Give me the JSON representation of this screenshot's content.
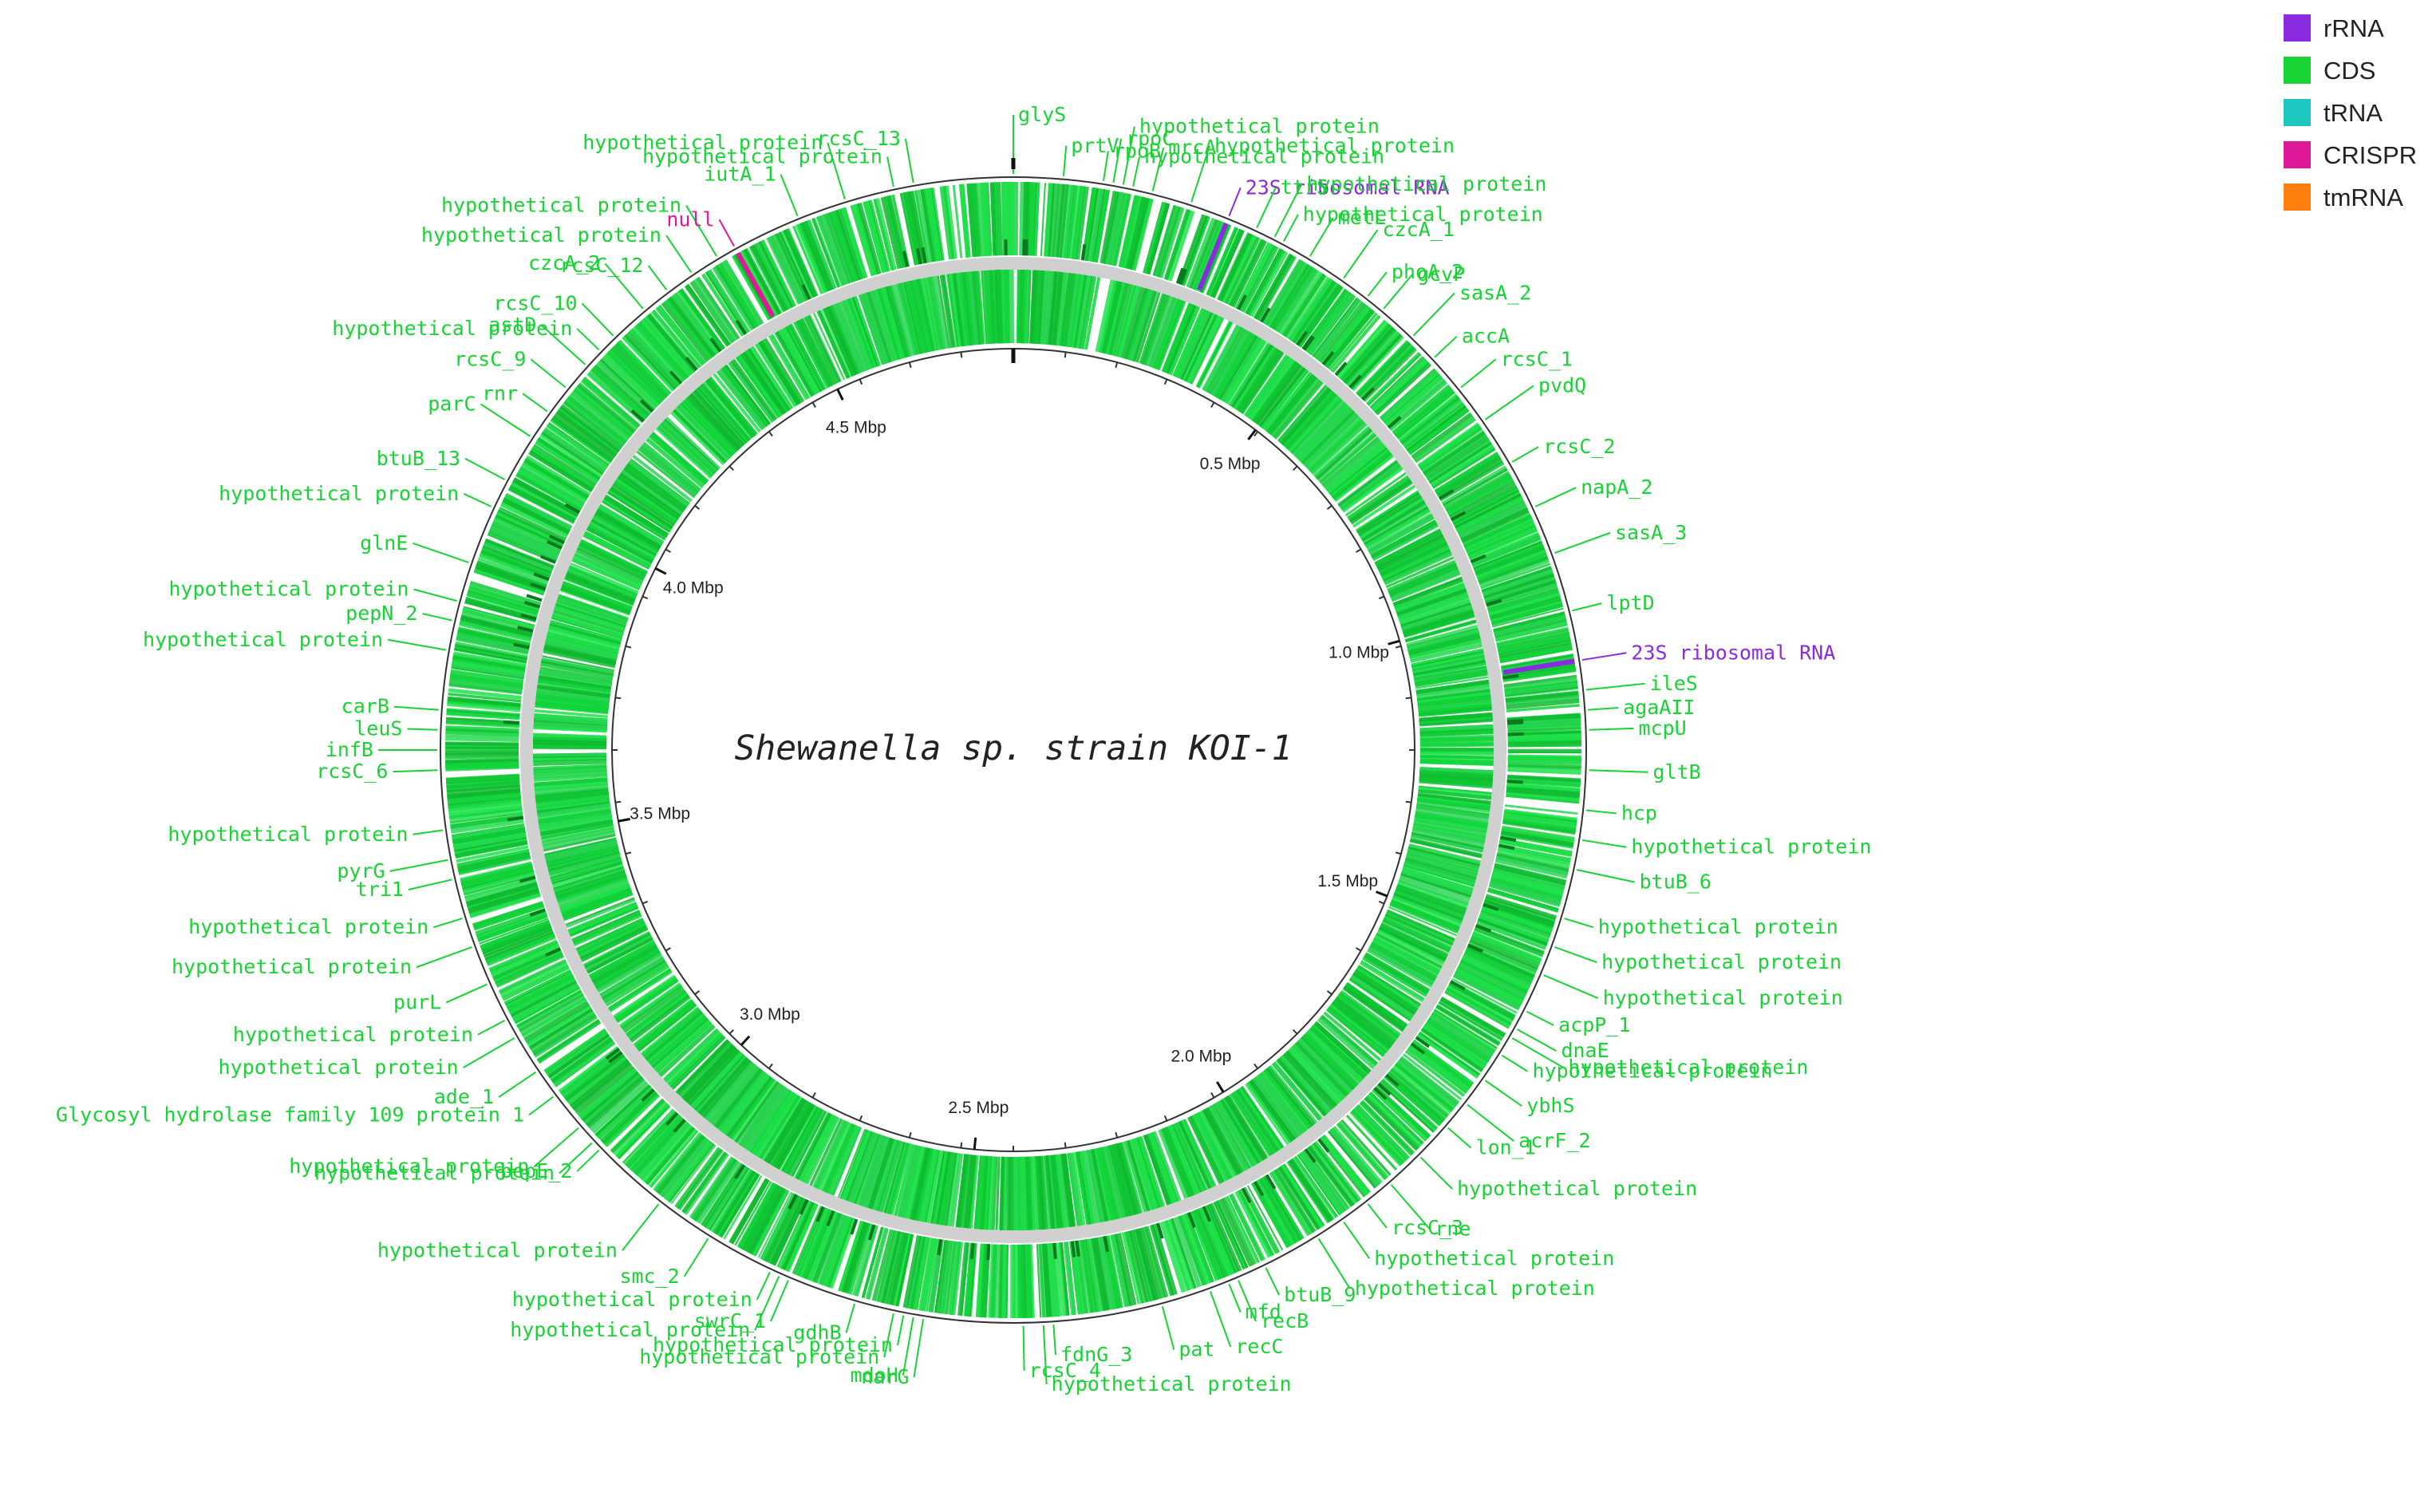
{
  "title": "Shewanella sp. strain KOI-1",
  "scale": {
    "genome_mbp": 4.85
  },
  "legend": [
    {
      "label": "rRNA",
      "color": "#8a2be2"
    },
    {
      "label": "CDS",
      "color": "#17d433"
    },
    {
      "label": "tRNA",
      "color": "#1cc8c0"
    },
    {
      "label": "CRISPR",
      "color": "#e0189a"
    },
    {
      "label": "tmRNA",
      "color": "#ff7f0e"
    }
  ],
  "ticks": [
    "0.5 Mbp",
    "1.0 Mbp",
    "1.5 Mbp",
    "2.0 Mbp",
    "2.5 Mbp",
    "3.0 Mbp",
    "3.5 Mbp",
    "4.0 Mbp",
    "4.5 Mbp"
  ],
  "features": [
    {
      "label": "rpoB",
      "type": "CDS",
      "deg": 9
    },
    {
      "label": "rpoC",
      "type": "CDS",
      "deg": 10
    },
    {
      "label": "hypothetical protein",
      "type": "CDS",
      "deg": 11
    },
    {
      "label": "hypothetical protein",
      "type": "CDS",
      "deg": 12
    },
    {
      "label": "mrcA",
      "type": "CDS",
      "deg": 14
    },
    {
      "label": "hypothetical protein",
      "type": "CDS",
      "deg": 18
    },
    {
      "label": "23S ribosomal RNA",
      "type": "rRNA",
      "deg": 22
    },
    {
      "label": "ttrS",
      "type": "CDS",
      "deg": 25
    },
    {
      "label": "hypothetical protein",
      "type": "CDS",
      "deg": 27
    },
    {
      "label": "hypothetical protein",
      "type": "CDS",
      "deg": 28
    },
    {
      "label": "metL",
      "type": "CDS",
      "deg": 31
    },
    {
      "label": "czcA_1",
      "type": "CDS",
      "deg": 35
    },
    {
      "label": "phoA_2",
      "type": "CDS",
      "deg": 38
    },
    {
      "label": "gcvP",
      "type": "CDS",
      "deg": 40
    },
    {
      "label": "sasA_2",
      "type": "CDS",
      "deg": 44
    },
    {
      "label": "accA",
      "type": "CDS",
      "deg": 47
    },
    {
      "label": "rcsC_1",
      "type": "CDS",
      "deg": 51
    },
    {
      "label": "pvdQ",
      "type": "CDS",
      "deg": 55
    },
    {
      "label": "rcsC_2",
      "type": "CDS",
      "deg": 60
    },
    {
      "label": "napA_2",
      "type": "CDS",
      "deg": 65
    },
    {
      "label": "sasA_3",
      "type": "CDS",
      "deg": 70
    },
    {
      "label": "lptD",
      "type": "CDS",
      "deg": 76
    },
    {
      "label": "23S ribosomal RNA",
      "type": "rRNA",
      "deg": 81
    },
    {
      "label": "ileS",
      "type": "CDS",
      "deg": 84
    },
    {
      "label": "agaAII",
      "type": "CDS",
      "deg": 86
    },
    {
      "label": "mcpU",
      "type": "CDS",
      "deg": 88
    },
    {
      "label": "gltB",
      "type": "CDS",
      "deg": 92
    },
    {
      "label": "hcp",
      "type": "CDS",
      "deg": 96
    },
    {
      "label": "hypothetical protein",
      "type": "CDS",
      "deg": 99
    },
    {
      "label": "btuB_6",
      "type": "CDS",
      "deg": 102
    },
    {
      "label": "hypothetical protein",
      "type": "CDS",
      "deg": 107
    },
    {
      "label": "hypothetical protein",
      "type": "CDS",
      "deg": 110
    },
    {
      "label": "hypothetical protein",
      "type": "CDS",
      "deg": 113
    },
    {
      "label": "acpP_1",
      "type": "CDS",
      "deg": 117
    },
    {
      "label": "dnaE",
      "type": "CDS",
      "deg": 119
    },
    {
      "label": "hypothetical protein",
      "type": "CDS",
      "deg": 120
    },
    {
      "label": "hypothetical protein",
      "type": "CDS",
      "deg": 122
    },
    {
      "label": "ybhS",
      "type": "CDS",
      "deg": 125
    },
    {
      "label": "acrF_2",
      "type": "CDS",
      "deg": 128
    },
    {
      "label": "lon_1",
      "type": "CDS",
      "deg": 131
    },
    {
      "label": "hypothetical protein",
      "type": "CDS",
      "deg": 135
    },
    {
      "label": "rne",
      "type": "CDS",
      "deg": 139
    },
    {
      "label": "rcsC_3",
      "type": "CDS",
      "deg": 142
    },
    {
      "label": "hypothetical protein",
      "type": "CDS",
      "deg": 145
    },
    {
      "label": "hypothetical protein",
      "type": "CDS",
      "deg": 148
    },
    {
      "label": "btuB_9",
      "type": "CDS",
      "deg": 154
    },
    {
      "label": "recB",
      "type": "CDS",
      "deg": 157
    },
    {
      "label": "recC",
      "type": "CDS",
      "deg": 160
    },
    {
      "label": "mfd",
      "type": "CDS",
      "deg": 158
    },
    {
      "label": "pat",
      "type": "CDS",
      "deg": 165
    },
    {
      "label": "hypothetical protein",
      "type": "CDS",
      "deg": 177
    },
    {
      "label": "fdnG_3",
      "type": "CDS",
      "deg": 176
    },
    {
      "label": "rcsC_4",
      "type": "CDS",
      "deg": 179
    },
    {
      "label": "mdoH",
      "type": "CDS",
      "deg": 190
    },
    {
      "label": "hypothetical protein",
      "type": "CDS",
      "deg": 191
    },
    {
      "label": "hypothetical protein",
      "type": "CDS",
      "deg": 192
    },
    {
      "label": "narG",
      "type": "CDS",
      "deg": 189
    },
    {
      "label": "gdhB",
      "type": "CDS",
      "deg": 196
    },
    {
      "label": "swrC_1",
      "type": "CDS",
      "deg": 203
    },
    {
      "label": "hypothetical protein",
      "type": "CDS",
      "deg": 204
    },
    {
      "label": "hypothetical protein",
      "type": "CDS",
      "deg": 205
    },
    {
      "label": "smc_2",
      "type": "CDS",
      "deg": 212
    },
    {
      "label": "hypothetical protein",
      "type": "CDS",
      "deg": 218
    },
    {
      "label": "bepE_2",
      "type": "CDS",
      "deg": 226
    },
    {
      "label": "hypothetical protein",
      "type": "CDS",
      "deg": 227
    },
    {
      "label": "hypothetical protein",
      "type": "CDS",
      "deg": 229
    },
    {
      "label": "Glycosyl hydrolase family 109 protein 1",
      "type": "CDS",
      "deg": 233
    },
    {
      "label": "ade_1",
      "type": "CDS",
      "deg": 236
    },
    {
      "label": "hypothetical protein",
      "type": "CDS",
      "deg": 240
    },
    {
      "label": "hypothetical protein",
      "type": "CDS",
      "deg": 242
    },
    {
      "label": "purL",
      "type": "CDS",
      "deg": 246
    },
    {
      "label": "hypothetical protein",
      "type": "CDS",
      "deg": 250
    },
    {
      "label": "hypothetical protein",
      "type": "CDS",
      "deg": 253
    },
    {
      "label": "tri1",
      "type": "CDS",
      "deg": 257
    },
    {
      "label": "pyrG",
      "type": "CDS",
      "deg": 259
    },
    {
      "label": "hypothetical protein",
      "type": "CDS",
      "deg": 262
    },
    {
      "label": "rcsC_6",
      "type": "CDS",
      "deg": 268
    },
    {
      "label": "infB",
      "type": "CDS",
      "deg": 270
    },
    {
      "label": "leuS",
      "type": "CDS",
      "deg": 272
    },
    {
      "label": "carB",
      "type": "CDS",
      "deg": 274
    },
    {
      "label": "hypothetical protein",
      "type": "CDS",
      "deg": 280
    },
    {
      "label": "pepN_2",
      "type": "CDS",
      "deg": 283
    },
    {
      "label": "hypothetical protein",
      "type": "CDS",
      "deg": 285
    },
    {
      "label": "glnE",
      "type": "CDS",
      "deg": 289
    },
    {
      "label": "hypothetical protein",
      "type": "CDS",
      "deg": 295
    },
    {
      "label": "btuB_13",
      "type": "CDS",
      "deg": 298
    },
    {
      "label": "parC",
      "type": "CDS",
      "deg": 303
    },
    {
      "label": "rnr",
      "type": "CDS",
      "deg": 306
    },
    {
      "label": "rcsC_9",
      "type": "CDS",
      "deg": 309
    },
    {
      "label": "astD",
      "type": "CDS",
      "deg": 312
    },
    {
      "label": "hypothetical protein",
      "type": "CDS",
      "deg": 314
    },
    {
      "label": "rcsC_10",
      "type": "CDS",
      "deg": 316
    },
    {
      "label": "czcA_2",
      "type": "CDS",
      "deg": 320
    },
    {
      "label": "rcsC_12",
      "type": "CDS",
      "deg": 323
    },
    {
      "label": "hypothetical protein",
      "type": "CDS",
      "deg": 326
    },
    {
      "label": "hypothetical protein",
      "type": "CDS",
      "deg": 329
    },
    {
      "label": "null",
      "type": "CRISPR",
      "deg": 331
    },
    {
      "label": "iutA_1",
      "type": "CDS",
      "deg": 338
    },
    {
      "label": "hypothetical protein",
      "type": "CDS",
      "deg": 343
    },
    {
      "label": "hypothetical protein",
      "type": "CDS",
      "deg": 348
    },
    {
      "label": "rcsC_13",
      "type": "CDS",
      "deg": 350
    },
    {
      "label": "glyS",
      "type": "CDS",
      "deg": 0
    },
    {
      "label": "prtV",
      "type": "CDS",
      "deg": 5
    }
  ]
}
